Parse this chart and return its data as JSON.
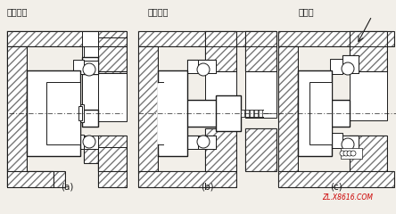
{
  "title_a": "调节垫片",
  "title_b": "调节压盖",
  "title_c": "调整环",
  "label_a": "(a)",
  "label_b": "(b)",
  "label_c": "(c)",
  "watermark": "ZL.X8616.COM",
  "bg_color": "#f2efe9",
  "line_color": "#1a1a1a",
  "fig_width": 4.44,
  "fig_height": 2.4,
  "dpi": 100
}
